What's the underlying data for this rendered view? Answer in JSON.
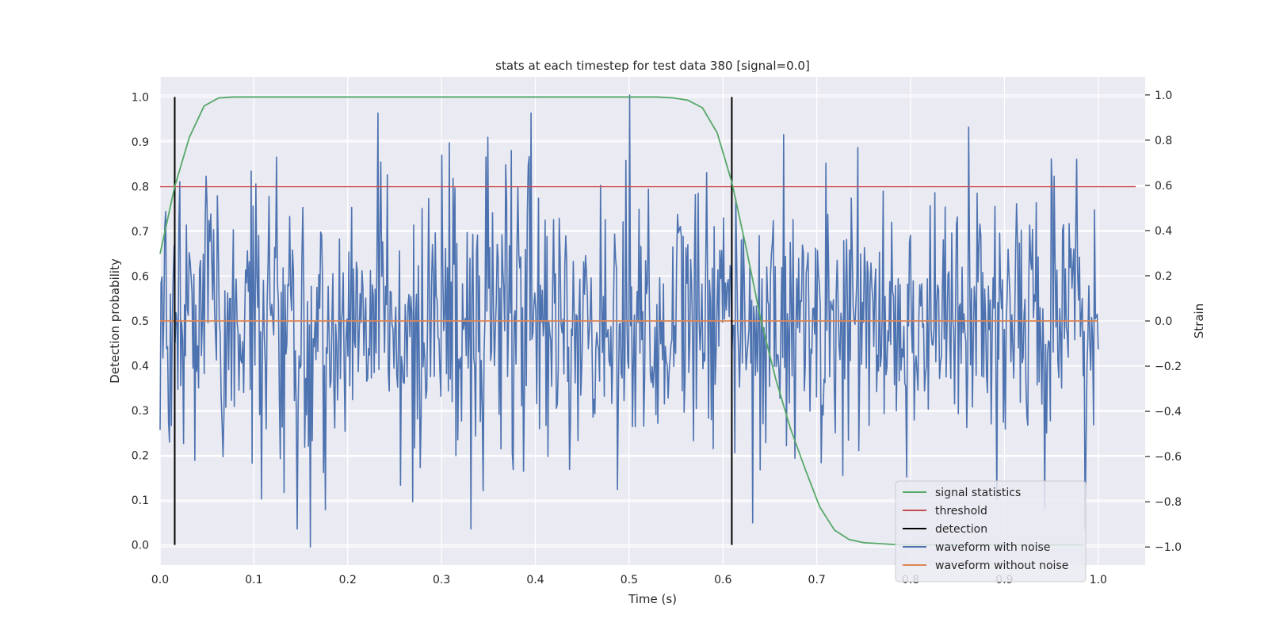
{
  "chart_data": {
    "type": "line",
    "title": "stats at each timestep for test data 380 [signal=0.0]",
    "xlabel": "Time (s)",
    "ylabel_left": "Detection probability",
    "ylabel_right": "Strain",
    "xlim": [
      0.0,
      1.05
    ],
    "ylim_left": [
      -0.045,
      1.045
    ],
    "ylim_right": [
      -1.08,
      1.08
    ],
    "x_ticks": [
      0.0,
      0.1,
      0.2,
      0.3,
      0.4,
      0.5,
      0.6,
      0.7,
      0.8,
      0.9,
      1.0
    ],
    "x_tick_labels": [
      "0.0",
      "0.1",
      "0.2",
      "0.3",
      "0.4",
      "0.5",
      "0.6",
      "0.7",
      "0.8",
      "0.9",
      "1.0"
    ],
    "y_left_ticks": [
      0.0,
      0.1,
      0.2,
      0.3,
      0.4,
      0.5,
      0.6,
      0.7,
      0.8,
      0.9,
      1.0
    ],
    "y_left_tick_labels": [
      "0.0",
      "0.1",
      "0.2",
      "0.3",
      "0.4",
      "0.5",
      "0.6",
      "0.7",
      "0.8",
      "0.9",
      "1.0"
    ],
    "y_right_ticks": [
      -1.0,
      -0.8,
      -0.6,
      -0.4,
      -0.2,
      0.0,
      0.2,
      0.4,
      0.6,
      0.8,
      1.0
    ],
    "y_right_tick_labels": [
      "−1.0",
      "−0.8",
      "−0.6",
      "−0.4",
      "−0.2",
      "0.0",
      "0.2",
      "0.4",
      "0.6",
      "0.8",
      "1.0"
    ],
    "grid": true,
    "legend_position": "lower right",
    "background": "#eaeaf2",
    "series": [
      {
        "name": "signal statistics",
        "axis": "left",
        "color": "#55a868",
        "x": [
          0.0,
          0.0156,
          0.0312,
          0.0469,
          0.0625,
          0.0781,
          0.1,
          0.2,
          0.3,
          0.4,
          0.5,
          0.53,
          0.5469,
          0.5625,
          0.5781,
          0.5938,
          0.6094,
          0.625,
          0.6406,
          0.6563,
          0.6719,
          0.6875,
          0.7031,
          0.7188,
          0.7344,
          0.75,
          0.7656,
          0.7813,
          0.8,
          0.9,
          0.9844
        ],
        "y": [
          0.65,
          0.8,
          0.91,
          0.98,
          0.998,
          1.0,
          1.0,
          1.0,
          1.0,
          1.0,
          1.0,
          1.0,
          0.998,
          0.993,
          0.976,
          0.92,
          0.81,
          0.66,
          0.5,
          0.37,
          0.26,
          0.17,
          0.085,
          0.033,
          0.012,
          0.005,
          0.003,
          0.001,
          0.0,
          0.0,
          0.0
        ]
      },
      {
        "name": "threshold",
        "axis": "left",
        "color": "#c44e52",
        "x": [
          0.0,
          1.04
        ],
        "y": [
          0.8,
          0.8
        ]
      },
      {
        "name": "detection",
        "axis": "left",
        "color": "#000000",
        "segments": [
          {
            "x": 0.0156,
            "y_range": [
              0.0,
              1.0
            ]
          },
          {
            "x": 0.6094,
            "y_range": [
              0.0,
              1.0
            ]
          }
        ]
      },
      {
        "name": "waveform with noise",
        "axis": "right",
        "color": "#4c72b0",
        "x_range": [
          0.0,
          1.0
        ],
        "n_points": 1000,
        "y_range_observed": [
          -1.0,
          1.0
        ],
        "y_approx_std": 0.3,
        "y_max_observed": 1.0,
        "y_max_at": 0.5,
        "y_min_observed": -1.0,
        "y_min_at": 0.16
      },
      {
        "name": "waveform without noise",
        "axis": "right",
        "color": "#dd8452",
        "x": [
          0.0,
          1.0
        ],
        "y": [
          0.0,
          0.0
        ]
      }
    ]
  }
}
